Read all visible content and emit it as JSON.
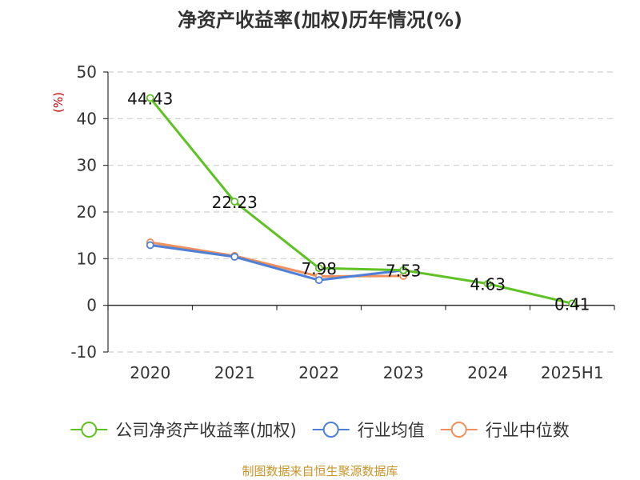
{
  "chart_data": {
    "type": "line",
    "title": "净资产收益率(加权)历年情况(%)",
    "ylabel": "(%)",
    "xlabel": "",
    "categories": [
      "2020",
      "2021",
      "2022",
      "2023",
      "2024",
      "2025H1"
    ],
    "ylim": [
      -10,
      50
    ],
    "yticks": [
      -10,
      0,
      10,
      20,
      30,
      40,
      50
    ],
    "grid": "horizontal dashed",
    "legend_position": "bottom",
    "series": [
      {
        "name": "公司净资产收益率(加权)",
        "color": "#5ec223",
        "values": [
          44.43,
          22.23,
          7.98,
          7.53,
          4.63,
          0.41
        ],
        "labels": [
          "44.43",
          "22.23",
          "7.98",
          "7.53",
          "4.63",
          "0.41"
        ]
      },
      {
        "name": "行业均值",
        "color": "#4f7fd6",
        "values": [
          12.9,
          10.4,
          5.4,
          7.5,
          null,
          null
        ]
      },
      {
        "name": "行业中位数",
        "color": "#f0905c",
        "values": [
          13.5,
          10.6,
          6.2,
          6.3,
          null,
          null
        ]
      }
    ],
    "source": "制图数据来自恒生聚源数据库"
  }
}
